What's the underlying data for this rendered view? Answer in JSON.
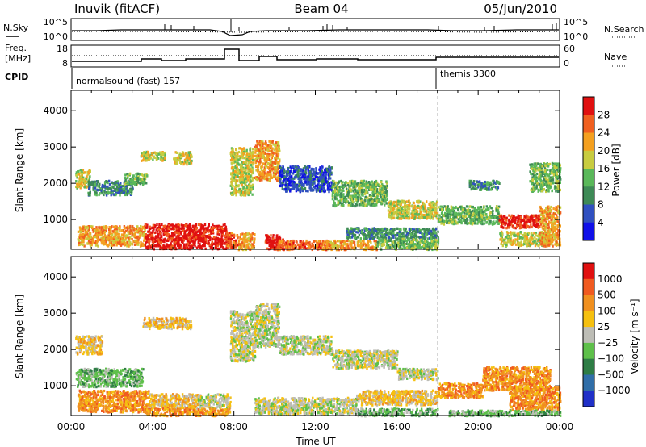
{
  "header": {
    "station": "Inuvik (fitACF)",
    "beam": "Beam 04",
    "date": "05/Jun/2010"
  },
  "nsky_panel": {
    "left_label": "N.Sky",
    "right_label": "N.Search",
    "left_ticks": [
      "10^5",
      "10^0"
    ],
    "right_ticks": [
      "10^5",
      "10^0"
    ]
  },
  "freq_panel": {
    "left_label_1": "Freq.",
    "left_label_2": "[MHz]",
    "right_label": "Nave",
    "left_ticks": [
      "18",
      "8"
    ],
    "right_ticks": [
      "60",
      "0"
    ]
  },
  "cpid_panel": {
    "label": "CPID",
    "modes": [
      {
        "name": "normalsound (fast) 157",
        "start_hour": 0
      },
      {
        "name": "themis 3300",
        "start_hour": 18
      }
    ]
  },
  "chart_data": [
    {
      "type": "heatmap",
      "name": "power-panel",
      "ylabel": "Slant Range [km]",
      "y_ticks": [
        "1000",
        "2000",
        "3000",
        "4000"
      ],
      "x_ticks": [
        "00:00",
        "04:00",
        "08:00",
        "12:00",
        "16:00",
        "20:00",
        "00:00"
      ],
      "xlim_hours": [
        0,
        24
      ],
      "ylim_km": [
        180,
        4560
      ],
      "colorbar": {
        "label": "Power [dB]",
        "ticks": [
          "4",
          "8",
          "12",
          "16",
          "20",
          "24",
          "28"
        ],
        "colors": [
          "#1010e8",
          "#3050c0",
          "#3e8a56",
          "#5ab85a",
          "#c8cc40",
          "#f4a020",
          "#f06020",
          "#e01010"
        ]
      },
      "regions": [
        {
          "t0": 0.2,
          "t1": 0.9,
          "r0": 1900,
          "r1": 2400,
          "level": 4
        },
        {
          "t0": 0.8,
          "t1": 3.0,
          "r0": 1700,
          "r1": 2100,
          "level": 2
        },
        {
          "t0": 2.6,
          "t1": 3.7,
          "r0": 2000,
          "r1": 2300,
          "level": 3
        },
        {
          "t0": 3.4,
          "t1": 4.6,
          "r0": 2650,
          "r1": 2900,
          "level": 4
        },
        {
          "t0": 5.0,
          "t1": 5.9,
          "r0": 2550,
          "r1": 2900,
          "level": 4
        },
        {
          "t0": 0.3,
          "t1": 3.6,
          "r0": 300,
          "r1": 850,
          "level": 5
        },
        {
          "t0": 3.6,
          "t1": 7.6,
          "r0": 220,
          "r1": 900,
          "level": 7
        },
        {
          "t0": 7.6,
          "t1": 8.2,
          "r0": 250,
          "r1": 700,
          "level": 6
        },
        {
          "t0": 8.2,
          "t1": 9.0,
          "r0": 200,
          "r1": 650,
          "level": 5
        },
        {
          "t0": 9.5,
          "t1": 10.4,
          "r0": 200,
          "r1": 600,
          "level": 7
        },
        {
          "t0": 10.0,
          "t1": 12.8,
          "r0": 200,
          "r1": 450,
          "level": 6
        },
        {
          "t0": 7.8,
          "t1": 8.9,
          "r0": 1700,
          "r1": 3000,
          "level": 4
        },
        {
          "t0": 9.0,
          "t1": 10.2,
          "r0": 2100,
          "r1": 3200,
          "level": 5
        },
        {
          "t0": 10.2,
          "t1": 12.8,
          "r0": 1800,
          "r1": 2500,
          "level": 1
        },
        {
          "t0": 12.8,
          "t1": 15.5,
          "r0": 1400,
          "r1": 2100,
          "level": 3
        },
        {
          "t0": 15.5,
          "t1": 18.0,
          "r0": 1050,
          "r1": 1550,
          "level": 4
        },
        {
          "t0": 13.5,
          "t1": 18.0,
          "r0": 500,
          "r1": 800,
          "level": 2
        },
        {
          "t0": 12.5,
          "t1": 15.0,
          "r0": 200,
          "r1": 450,
          "level": 5
        },
        {
          "t0": 15.0,
          "t1": 18.0,
          "r0": 200,
          "r1": 500,
          "level": 3
        },
        {
          "t0": 18.0,
          "t1": 21.0,
          "r0": 900,
          "r1": 1400,
          "level": 3
        },
        {
          "t0": 21.0,
          "t1": 23.0,
          "r0": 800,
          "r1": 1150,
          "level": 7
        },
        {
          "t0": 21.0,
          "t1": 23.5,
          "r0": 300,
          "r1": 700,
          "level": 4
        },
        {
          "t0": 23.0,
          "t1": 24.0,
          "r0": 300,
          "r1": 1400,
          "level": 5
        },
        {
          "t0": 19.5,
          "t1": 21.0,
          "r0": 1850,
          "r1": 2100,
          "level": 2
        },
        {
          "t0": 22.5,
          "t1": 24.0,
          "r0": 1800,
          "r1": 2600,
          "level": 3
        }
      ]
    },
    {
      "type": "heatmap",
      "name": "velocity-panel",
      "ylabel": "Slant Range [km]",
      "y_ticks": [
        "1000",
        "2000",
        "3000",
        "4000"
      ],
      "x_ticks": [
        "00:00",
        "04:00",
        "08:00",
        "12:00",
        "16:00",
        "20:00",
        "00:00"
      ],
      "xlabel": "Time UT",
      "xlim_hours": [
        0,
        24
      ],
      "ylim_km": [
        180,
        4560
      ],
      "colorbar": {
        "label": "Velocity [m s⁻¹]",
        "ticks": [
          "1000",
          "500",
          "100",
          "25",
          "−25",
          "−100",
          "−500",
          "−1000"
        ],
        "colors": [
          "#2030c8",
          "#306ea8",
          "#2e7d45",
          "#5ec04a",
          "#bdbdb6",
          "#f5c010",
          "#f09020",
          "#f05a20",
          "#e01010"
        ]
      },
      "regions": [
        {
          "t0": 0.2,
          "t1": 1.5,
          "r0": 1900,
          "r1": 2400,
          "level": 5
        },
        {
          "t0": 0.2,
          "t1": 3.5,
          "r0": 1000,
          "r1": 1500,
          "level": 3
        },
        {
          "t0": 0.3,
          "t1": 3.8,
          "r0": 300,
          "r1": 900,
          "level": 6
        },
        {
          "t0": 3.8,
          "t1": 6.2,
          "r0": 400,
          "r1": 800,
          "level": 5
        },
        {
          "t0": 6.2,
          "t1": 7.8,
          "r0": 400,
          "r1": 800,
          "level": 4
        },
        {
          "t0": 3.6,
          "t1": 7.8,
          "r0": 200,
          "r1": 400,
          "level": 6
        },
        {
          "t0": 3.5,
          "t1": 5.9,
          "r0": 2600,
          "r1": 2900,
          "level": 5
        },
        {
          "t0": 7.8,
          "t1": 9.0,
          "r0": 1700,
          "r1": 3100,
          "level": 4
        },
        {
          "t0": 9.0,
          "t1": 10.2,
          "r0": 2100,
          "r1": 3300,
          "level": 4
        },
        {
          "t0": 10.2,
          "t1": 12.8,
          "r0": 1900,
          "r1": 2400,
          "level": 4
        },
        {
          "t0": 12.8,
          "t1": 16.0,
          "r0": 1500,
          "r1": 2000,
          "level": 4
        },
        {
          "t0": 16.0,
          "t1": 18.0,
          "r0": 1200,
          "r1": 1500,
          "level": 4
        },
        {
          "t0": 9.0,
          "t1": 14.0,
          "r0": 250,
          "r1": 700,
          "level": 4
        },
        {
          "t0": 14.0,
          "t1": 18.0,
          "r0": 500,
          "r1": 900,
          "level": 5
        },
        {
          "t0": 14.0,
          "t1": 18.0,
          "r0": 200,
          "r1": 400,
          "level": 3
        },
        {
          "t0": 18.0,
          "t1": 20.2,
          "r0": 700,
          "r1": 1100,
          "level": 6
        },
        {
          "t0": 20.2,
          "t1": 23.5,
          "r0": 900,
          "r1": 1550,
          "level": 6
        },
        {
          "t0": 21.5,
          "t1": 24.0,
          "r0": 350,
          "r1": 1000,
          "level": 6
        },
        {
          "t0": 18.5,
          "t1": 24.0,
          "r0": 200,
          "r1": 350,
          "level": 3
        }
      ]
    }
  ]
}
